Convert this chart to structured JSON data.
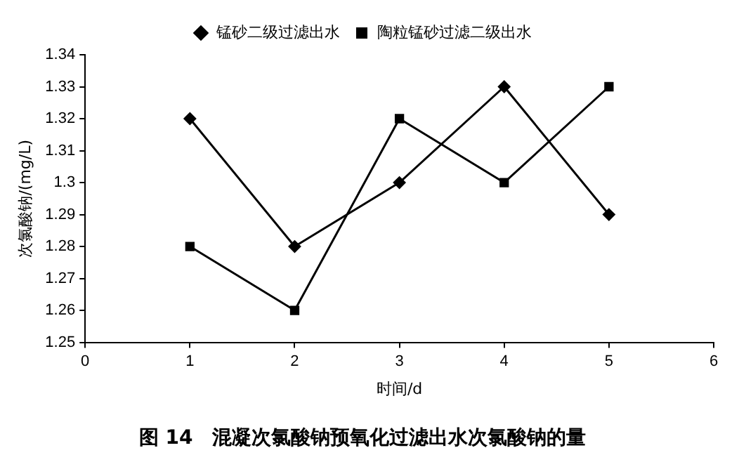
{
  "chart_data": {
    "type": "line",
    "title": "图 14　混凝次氯酸钠预氧化过滤出水次氯酸钠的量",
    "xlabel": "时间/d",
    "ylabel": "次氯酸钠/(mg/L)",
    "x": [
      1,
      2,
      3,
      4,
      5
    ],
    "series": [
      {
        "name": "锰砂二级过滤出水",
        "color": "#000000",
        "marker": "diamond",
        "values": [
          1.32,
          1.28,
          1.3,
          1.33,
          1.29
        ]
      },
      {
        "name": "陶粒锰砂过滤二级出水",
        "color": "#000000",
        "marker": "square",
        "values": [
          1.28,
          1.26,
          1.32,
          1.3,
          1.33
        ]
      }
    ],
    "xlim": [
      0,
      6
    ],
    "xticks": [
      0,
      1,
      2,
      3,
      4,
      5,
      6
    ],
    "ylim": [
      1.25,
      1.34
    ],
    "yticks": [
      1.25,
      1.26,
      1.27,
      1.28,
      1.29,
      1.3,
      1.31,
      1.32,
      1.33,
      1.34
    ],
    "grid": false,
    "legend": "top",
    "line_style": "solid"
  }
}
